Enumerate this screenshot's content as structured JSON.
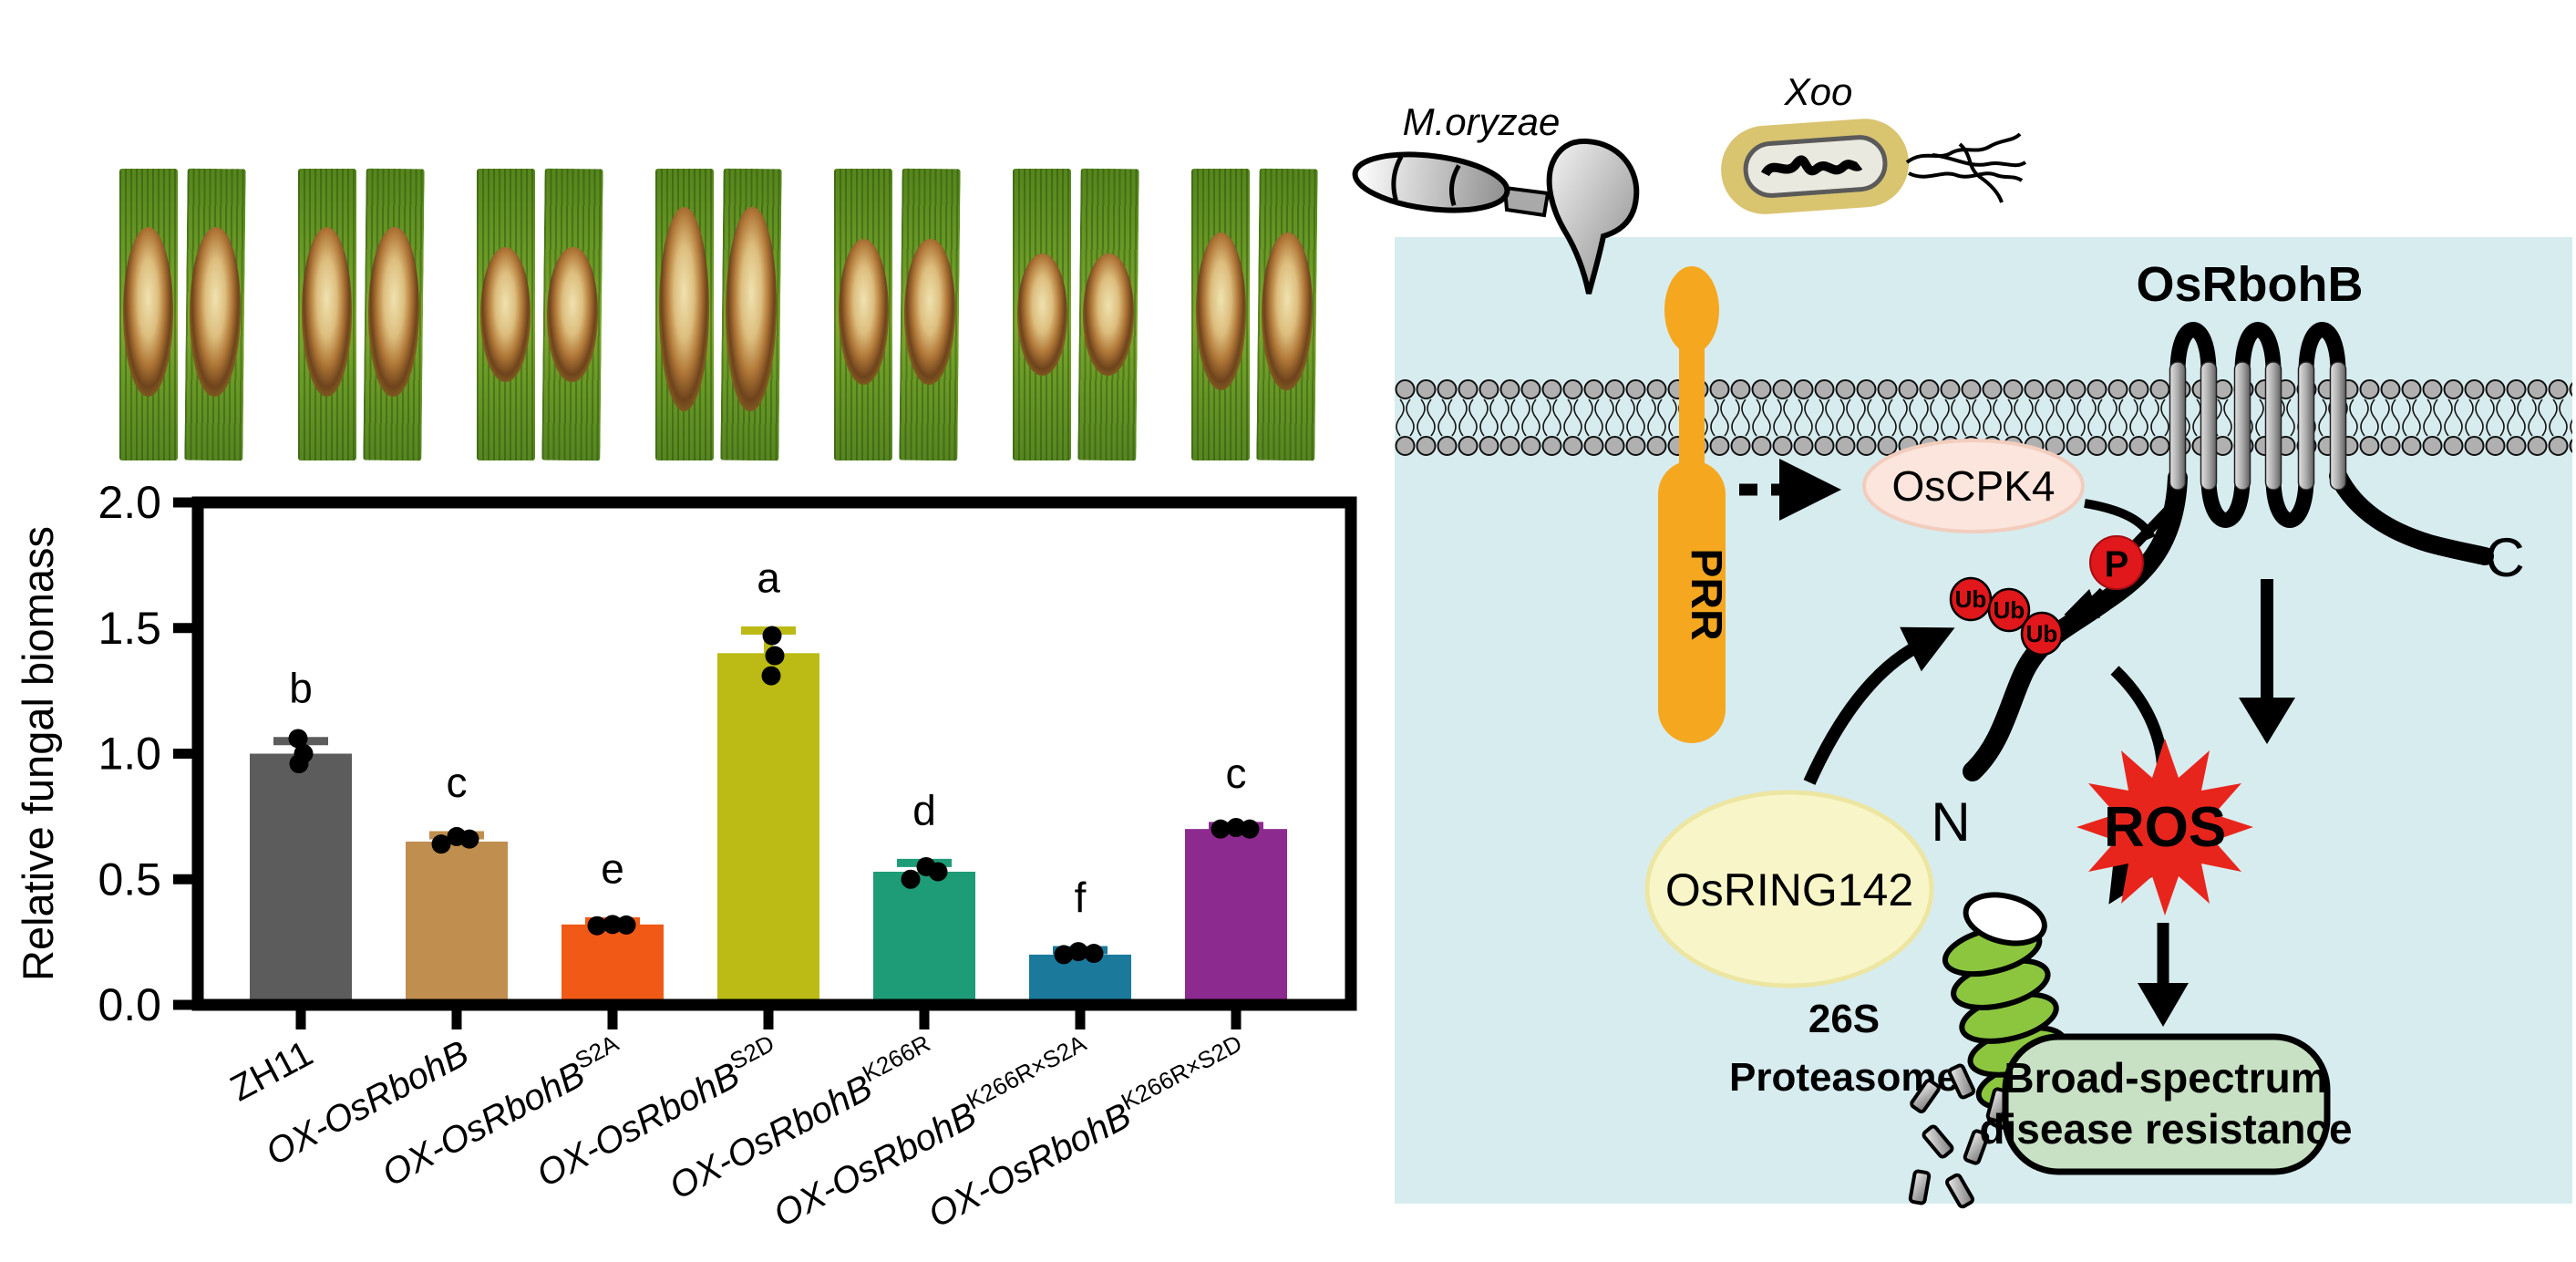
{
  "chart_data": {
    "type": "bar",
    "title": "",
    "xlabel": "",
    "ylabel": "Relative fungal biomass",
    "ylim": [
      0,
      2
    ],
    "yticks": [
      0,
      0.5,
      1,
      1.5,
      2
    ],
    "grid": false,
    "legend": "none",
    "categories": [
      "ZH11",
      "OX-OsRbohB",
      "OX-OsRbohB S2A",
      "OX-OsRbohB S2D",
      "OX-OsRbohB K266R",
      "OX-OsRbohB K266R×S2A",
      "OX-OsRbohB K266R×S2D"
    ],
    "series": [
      {
        "label": "ZH11",
        "sup": "",
        "italic": false,
        "value": 1.0,
        "err": 0.05,
        "sig": "b",
        "color": "#5C5C5C",
        "points": [
          1.06,
          1.0,
          0.96
        ],
        "jx": [
          -3,
          3,
          -2
        ]
      },
      {
        "label": "OX-OsRbohB",
        "sup": "",
        "italic": true,
        "value": 0.65,
        "err": 0.025,
        "sig": "c",
        "color": "#C08E4E",
        "points": [
          0.64,
          0.67,
          0.66
        ],
        "jx": [
          -17,
          0,
          14
        ]
      },
      {
        "label": "OX-OsRbohB",
        "sup": "S2A",
        "italic": true,
        "value": 0.32,
        "err": 0.012,
        "sig": "e",
        "color": "#F05A16",
        "points": [
          0.315,
          0.32,
          0.318
        ],
        "jx": [
          -17,
          0,
          15
        ]
      },
      {
        "label": "OX-OsRbohB",
        "sup": "S2D",
        "italic": true,
        "value": 1.4,
        "err": 0.09,
        "sig": "a",
        "color": "#BCBB15",
        "points": [
          1.47,
          1.39,
          1.31
        ],
        "jx": [
          4,
          7,
          3
        ]
      },
      {
        "label": "OX-OsRbohB",
        "sup": "K266R",
        "italic": true,
        "value": 0.53,
        "err": 0.035,
        "sig": "d",
        "color": "#1E9B77",
        "points": [
          0.5,
          0.55,
          0.53
        ],
        "jx": [
          -15,
          2,
          15
        ]
      },
      {
        "label": "OX-OsRbohB",
        "sup": "K266R×S2A",
        "italic": true,
        "value": 0.2,
        "err": 0.018,
        "sig": "f",
        "color": "#1B7A9B",
        "points": [
          0.2,
          0.212,
          0.205
        ],
        "jx": [
          -18,
          -2,
          15
        ]
      },
      {
        "label": "OX-OsRbohB",
        "sup": "K266R×S2D",
        "italic": true,
        "value": 0.7,
        "err": 0.012,
        "sig": "c",
        "color": "#8D2A8F",
        "points": [
          0.7,
          0.706,
          0.7
        ],
        "jx": [
          -17,
          0,
          15
        ]
      }
    ]
  },
  "diagram": {
    "fungus_label": "M.oryzae",
    "bacterium_label": "Xoo",
    "receptor_label": "PRR",
    "kinase_label": "OsCPK4",
    "nadph_oxidase_label": "OsRbohB",
    "phospho_label": "P",
    "ubiquitin_label": "Ub",
    "n_terminus_label": "N",
    "c_terminus_label": "C",
    "e3_ligase_label": "OsRING142",
    "proteasome_label_line1": "26S",
    "proteasome_label_line2": "Proteasome",
    "ros_label": "ROS",
    "outcome_line1": "Broad-spectrum",
    "outcome_line2": "disease resistance",
    "colors": {
      "cell": "#D7ECEF",
      "membrane_head": "#B0B0B0",
      "prr_orange": "#F5A81F",
      "cpk4_fill": "#FBE5DC",
      "signal_red": "#E0171B",
      "ring142_fill": "#F8F6C8",
      "proteasome_green": "#8CC63F",
      "ros_red": "#E8251C",
      "ros_text_yellow": "#F7EC13",
      "outcome_green": "#C8E1C4"
    }
  }
}
